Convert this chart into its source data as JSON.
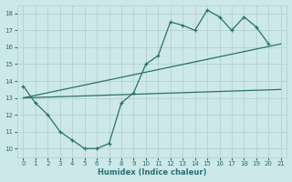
{
  "xlabel": "Humidex (Indice chaleur)",
  "xlim": [
    -0.5,
    21.5
  ],
  "ylim": [
    9.5,
    18.5
  ],
  "yticks": [
    10,
    11,
    12,
    13,
    14,
    15,
    16,
    17,
    18
  ],
  "xticks": [
    0,
    1,
    2,
    3,
    4,
    5,
    6,
    7,
    8,
    9,
    10,
    11,
    12,
    13,
    14,
    15,
    16,
    17,
    18,
    19,
    20,
    21
  ],
  "bg_color": "#cce8e8",
  "grid_color": "#b8d4d4",
  "line_color": "#2a7070",
  "line1_x": [
    0,
    1,
    2,
    3,
    4,
    5,
    6,
    7,
    8,
    9,
    10,
    11,
    12,
    13,
    14,
    15,
    16,
    17,
    18,
    19,
    20
  ],
  "line1_y": [
    13.7,
    12.7,
    12.0,
    11.0,
    10.5,
    10.0,
    10.0,
    10.3,
    12.7,
    13.3,
    15.0,
    15.5,
    17.5,
    17.3,
    17.0,
    18.2,
    17.8,
    17.0,
    17.8,
    17.2,
    16.2
  ],
  "line2_x": [
    0,
    21
  ],
  "line2_y": [
    13.0,
    16.2
  ],
  "line3_x": [
    0,
    21
  ],
  "line3_y": [
    13.0,
    13.5
  ],
  "xlabel_fontsize": 6,
  "tick_labelsize": 5
}
